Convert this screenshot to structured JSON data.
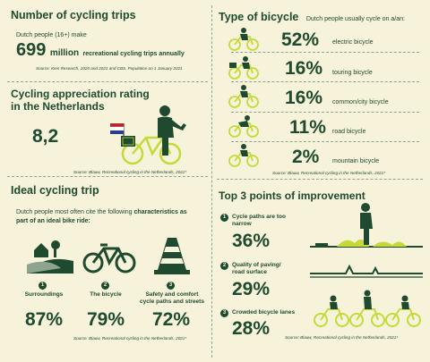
{
  "section1": {
    "title": "Number of cycling trips",
    "intro": "Dutch people (16+) make",
    "number": "699",
    "unit": "million",
    "suffix": "recreational cycling trips annually",
    "source": "Source: Kien Research, 2020 and 2021 and CBS, Population on 1 January 2021"
  },
  "section2": {
    "title_line1": "Cycling appreciation rating",
    "title_line2": "in the Netherlands",
    "rating": "8,2",
    "source": "Source: Blauw, Recreational cycling in the Netherlands, 2021*"
  },
  "section3": {
    "title": "Type of bicycle",
    "subtitle": "Dutch people usually cycle on a/an:",
    "items": [
      {
        "pct": "52%",
        "label": "electric bicycle"
      },
      {
        "pct": "16%",
        "label": "touring bicycle"
      },
      {
        "pct": "16%",
        "label": "common/city bicycle"
      },
      {
        "pct": "11%",
        "label": "road bicycle"
      },
      {
        "pct": "2%",
        "label": "mountain bicycle"
      }
    ],
    "source": "Source: Blauw, Recreational cycling in the Netherlands, 2021*"
  },
  "section4": {
    "title": "Ideal cycling trip",
    "intro_plain": "Dutch people most often cite the following",
    "intro_bold": "characteristics",
    "intro_plain2": "as",
    "intro_line2": "part of an ideal bike ride:",
    "items": [
      {
        "num": "1",
        "label": "Surroundings",
        "label2": "",
        "pct": "87%"
      },
      {
        "num": "2",
        "label": "The bicycle",
        "label2": "",
        "pct": "79%"
      },
      {
        "num": "3",
        "label": "Safety and comfort",
        "label2": "cycle paths and streets",
        "pct": "72%"
      }
    ],
    "source": "Source: Blauw, Recreational cycling in the Netherlands, 2021*"
  },
  "section5": {
    "title": "Top 3 points of improvement",
    "items": [
      {
        "num": "1",
        "label": "Cycle paths are too",
        "label2": "narrow",
        "pct": "36%"
      },
      {
        "num": "2",
        "label": "Quality of paving/",
        "label2": "road surface",
        "pct": "29%"
      },
      {
        "num": "3",
        "label": "Crowded bicycle lanes",
        "label2": "",
        "pct": "28%"
      }
    ],
    "source": "Source: Blauw, Recreational cycling in the Netherlands, 2021*"
  },
  "colors": {
    "background": "#F6F3DA",
    "dark_green": "#1F4A2F",
    "lime": "#C5D93A",
    "flag_red": "#B8262E",
    "flag_blue": "#2A3F8F"
  }
}
